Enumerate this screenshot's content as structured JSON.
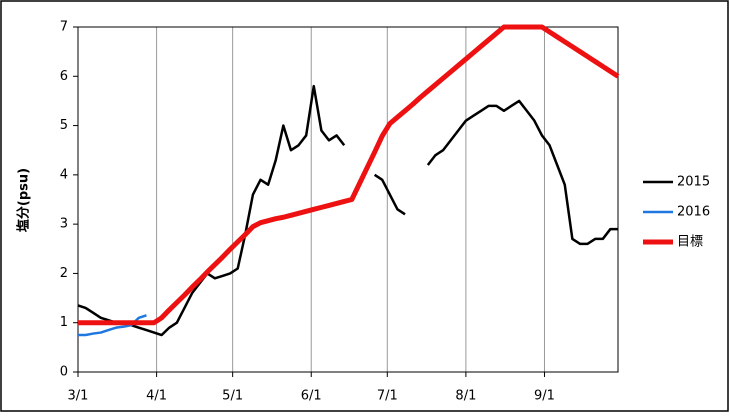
{
  "chart_data": {
    "type": "line",
    "y_label": "塩分(psu)",
    "x": [
      0,
      3,
      6,
      9,
      12,
      15,
      18,
      21,
      24,
      27,
      30,
      33,
      36,
      39,
      42,
      45,
      48,
      51,
      54,
      57,
      60,
      63,
      66,
      69,
      72,
      75,
      78,
      81,
      84,
      87,
      90,
      93,
      96,
      99,
      102,
      105,
      108,
      111,
      114,
      117,
      120,
      123,
      126,
      129,
      132,
      135,
      138,
      141,
      144,
      147,
      150,
      153,
      156,
      159,
      162,
      165,
      168,
      171,
      174,
      177,
      180,
      183,
      186,
      189,
      192,
      195,
      198,
      201,
      204,
      207,
      210,
      213
    ],
    "xlim": [
      0,
      213
    ],
    "xticks": [
      {
        "value": 0,
        "label": "3/1"
      },
      {
        "value": 31,
        "label": "4/1"
      },
      {
        "value": 61,
        "label": "5/1"
      },
      {
        "value": 92,
        "label": "6/1"
      },
      {
        "value": 122,
        "label": "7/1"
      },
      {
        "value": 153,
        "label": "8/1"
      },
      {
        "value": 184,
        "label": "9/1"
      }
    ],
    "ylim": [
      0,
      7
    ],
    "yticks": [
      0,
      1,
      2,
      3,
      4,
      5,
      6,
      7
    ],
    "grid": "x",
    "legend": "right",
    "series": [
      {
        "name": "2015",
        "color": "#000000",
        "width": 2.5,
        "values": [
          1.35,
          1.3,
          1.2,
          1.1,
          1.05,
          1.0,
          1.0,
          0.95,
          0.9,
          0.85,
          0.8,
          0.75,
          0.9,
          1.0,
          1.3,
          1.6,
          1.8,
          2.0,
          1.9,
          1.95,
          2.0,
          2.1,
          2.8,
          3.6,
          3.9,
          3.8,
          4.3,
          5.0,
          4.5,
          4.6,
          4.8,
          5.8,
          4.9,
          4.7,
          4.8,
          4.6,
          null,
          null,
          null,
          4.0,
          3.9,
          3.6,
          3.3,
          3.2,
          null,
          null,
          4.2,
          4.4,
          4.5,
          4.7,
          4.9,
          5.1,
          5.2,
          5.3,
          5.4,
          5.4,
          5.3,
          5.4,
          5.5,
          5.3,
          5.1,
          4.8,
          4.6,
          4.2,
          3.8,
          2.7,
          2.6,
          2.6,
          2.7,
          2.7,
          2.9,
          2.9
        ]
      },
      {
        "name": "2016",
        "color": "#1f77e0",
        "width": 2.5,
        "values": [
          0.75,
          0.75,
          0.78,
          0.8,
          0.85,
          0.9,
          0.92,
          0.95,
          1.1,
          1.15,
          null,
          null,
          null,
          null,
          null,
          null,
          null,
          null,
          null,
          null,
          null,
          null,
          null,
          null,
          null,
          null,
          null,
          null,
          null,
          null,
          null,
          null,
          null,
          null,
          null,
          null,
          null,
          null,
          null,
          null,
          null,
          null,
          null,
          null,
          null,
          null,
          null,
          null,
          null,
          null,
          null,
          null,
          null,
          null,
          null,
          null,
          null,
          null,
          null,
          null,
          null,
          null,
          null,
          null,
          null,
          null,
          null,
          null,
          null,
          null,
          null,
          null
        ]
      },
      {
        "name": "目標",
        "color": "#ee1111",
        "width": 5,
        "values": [
          1.0,
          1.0,
          1.0,
          1.0,
          1.0,
          1.0,
          1.0,
          1.0,
          1.0,
          1.0,
          1.0,
          1.1,
          1.26,
          1.41,
          1.56,
          1.72,
          1.87,
          2.03,
          2.18,
          2.33,
          2.49,
          2.64,
          2.79,
          2.95,
          3.03,
          3.07,
          3.11,
          3.14,
          3.18,
          3.22,
          3.26,
          3.3,
          3.34,
          3.38,
          3.42,
          3.46,
          3.5,
          3.82,
          4.14,
          4.46,
          4.79,
          5.04,
          5.17,
          5.3,
          5.43,
          5.57,
          5.7,
          5.83,
          5.96,
          6.09,
          6.22,
          6.35,
          6.48,
          6.61,
          6.74,
          6.87,
          7.0,
          7.0,
          7.0,
          7.0,
          7.0,
          7.0,
          6.9,
          6.8,
          6.7,
          6.6,
          6.5,
          6.4,
          6.3,
          6.2,
          6.1,
          6.0
        ]
      }
    ]
  }
}
